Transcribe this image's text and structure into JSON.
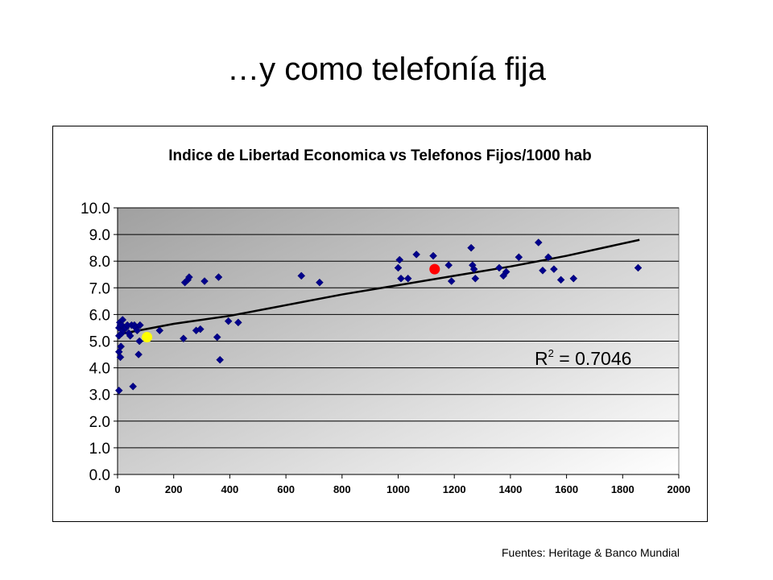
{
  "slide": {
    "title": "…y como telefonía fija",
    "source_note": "Fuentes: Heritage & Banco Mundial"
  },
  "chart_data": {
    "type": "scatter",
    "title": "Indice de Libertad Economica vs Telefonos Fijos/1000 hab",
    "xlabel": "",
    "ylabel": "",
    "xlim": [
      0,
      2000
    ],
    "ylim": [
      0,
      10
    ],
    "x_ticks": [
      "0",
      "200",
      "400",
      "600",
      "800",
      "1000",
      "1200",
      "1400",
      "1600",
      "1800",
      "2000"
    ],
    "y_ticks": [
      "0.0",
      "1.0",
      "2.0",
      "3.0",
      "4.0",
      "5.0",
      "6.0",
      "7.0",
      "8.0",
      "9.0",
      "10.0"
    ],
    "grid": "horizontal",
    "legend": "none",
    "colors": {
      "points": "#00008b",
      "trend": "#000000",
      "highlight_red": "#ff0000",
      "highlight_yellow": "#ffff00",
      "plot_bg_dark": "#a0a0a0",
      "plot_bg_light": "#ffffff"
    },
    "annotation": {
      "text_main": "R",
      "text_sup": "2",
      "text_rest": " = 0.7046"
    },
    "trendline": {
      "x": [
        0,
        200,
        400,
        600,
        800,
        1000,
        1200,
        1400,
        1600,
        1860
      ],
      "y": [
        5.25,
        5.65,
        5.95,
        6.35,
        6.75,
        7.1,
        7.45,
        7.8,
        8.2,
        8.8
      ]
    },
    "points": [
      {
        "x": 5,
        "y": 3.15
      },
      {
        "x": 5,
        "y": 4.6
      },
      {
        "x": 5,
        "y": 5.2
      },
      {
        "x": 5,
        "y": 5.5
      },
      {
        "x": 8,
        "y": 5.7
      },
      {
        "x": 10,
        "y": 4.4
      },
      {
        "x": 10,
        "y": 5.6
      },
      {
        "x": 12,
        "y": 4.8
      },
      {
        "x": 15,
        "y": 5.3
      },
      {
        "x": 15,
        "y": 5.6
      },
      {
        "x": 18,
        "y": 5.8
      },
      {
        "x": 20,
        "y": 5.4
      },
      {
        "x": 25,
        "y": 5.5
      },
      {
        "x": 30,
        "y": 5.5
      },
      {
        "x": 35,
        "y": 5.6
      },
      {
        "x": 40,
        "y": 5.3
      },
      {
        "x": 45,
        "y": 5.2
      },
      {
        "x": 50,
        "y": 5.6
      },
      {
        "x": 55,
        "y": 3.3
      },
      {
        "x": 60,
        "y": 5.6
      },
      {
        "x": 65,
        "y": 5.5
      },
      {
        "x": 70,
        "y": 5.4
      },
      {
        "x": 75,
        "y": 4.5
      },
      {
        "x": 78,
        "y": 5.0
      },
      {
        "x": 80,
        "y": 5.6
      },
      {
        "x": 150,
        "y": 5.4
      },
      {
        "x": 235,
        "y": 5.1
      },
      {
        "x": 240,
        "y": 7.2
      },
      {
        "x": 250,
        "y": 7.3
      },
      {
        "x": 255,
        "y": 7.4
      },
      {
        "x": 280,
        "y": 5.4
      },
      {
        "x": 295,
        "y": 5.45
      },
      {
        "x": 310,
        "y": 7.25
      },
      {
        "x": 355,
        "y": 5.15
      },
      {
        "x": 360,
        "y": 7.4
      },
      {
        "x": 365,
        "y": 4.3
      },
      {
        "x": 395,
        "y": 5.75
      },
      {
        "x": 430,
        "y": 5.7
      },
      {
        "x": 655,
        "y": 7.45
      },
      {
        "x": 720,
        "y": 7.2
      },
      {
        "x": 1000,
        "y": 7.75
      },
      {
        "x": 1005,
        "y": 8.05
      },
      {
        "x": 1010,
        "y": 7.35
      },
      {
        "x": 1035,
        "y": 7.35
      },
      {
        "x": 1065,
        "y": 8.25
      },
      {
        "x": 1125,
        "y": 8.2
      },
      {
        "x": 1180,
        "y": 7.85
      },
      {
        "x": 1190,
        "y": 7.25
      },
      {
        "x": 1260,
        "y": 8.5
      },
      {
        "x": 1265,
        "y": 7.85
      },
      {
        "x": 1270,
        "y": 7.7
      },
      {
        "x": 1275,
        "y": 7.35
      },
      {
        "x": 1360,
        "y": 7.75
      },
      {
        "x": 1375,
        "y": 7.45
      },
      {
        "x": 1385,
        "y": 7.6
      },
      {
        "x": 1430,
        "y": 8.15
      },
      {
        "x": 1500,
        "y": 8.7
      },
      {
        "x": 1515,
        "y": 7.65
      },
      {
        "x": 1535,
        "y": 8.15
      },
      {
        "x": 1555,
        "y": 7.7
      },
      {
        "x": 1580,
        "y": 7.3
      },
      {
        "x": 1625,
        "y": 7.35
      },
      {
        "x": 1855,
        "y": 7.75
      }
    ],
    "highlights": [
      {
        "x": 1130,
        "y": 7.7,
        "color": "#ff0000"
      },
      {
        "x": 105,
        "y": 5.15,
        "color": "#ffff00"
      }
    ]
  }
}
